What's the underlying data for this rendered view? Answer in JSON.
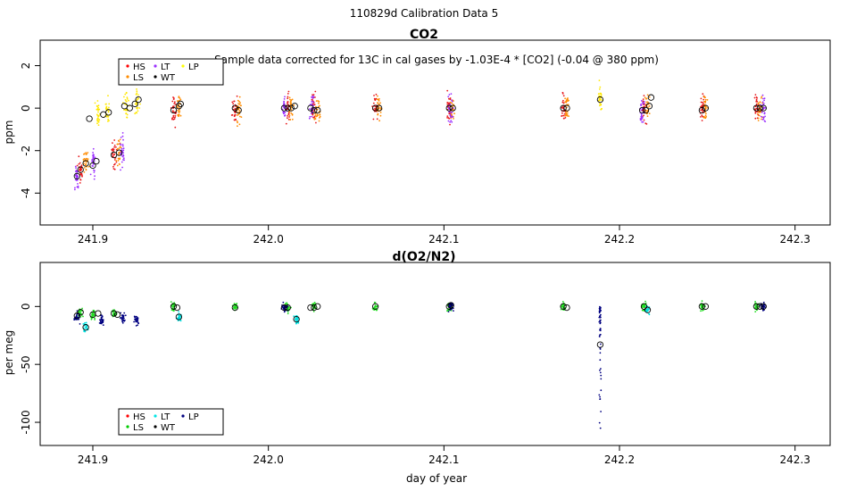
{
  "figure": {
    "suptitle": "110829d   Calibration Data 5",
    "xlabel": "day of year"
  },
  "chart_data": [
    {
      "type": "scatter",
      "title": "CO2",
      "ylabel": "ppm",
      "annotation": "Sample data corrected for 13C in cal gases by -1.03E-4 * [CO2] (-0.04 @ 380 ppm)",
      "xlim": [
        241.87,
        242.32
      ],
      "ylim": [
        -5.5,
        3.2
      ],
      "xticks": [
        241.9,
        242.0,
        242.1,
        242.2,
        242.3
      ],
      "xticklabels": [
        "241.9",
        "242.0",
        "242.1",
        "242.2",
        "242.3"
      ],
      "yticks": [
        -4,
        -2,
        0,
        2
      ],
      "yticklabels": [
        "-4",
        "-2",
        "0",
        "2"
      ],
      "legend": {
        "placement": "top-left",
        "entries": [
          {
            "name": "HS",
            "color": "#ff0000"
          },
          {
            "name": "LS",
            "color": "#ff8c00"
          },
          {
            "name": "LT",
            "color": "#9b30ff"
          },
          {
            "name": "WT",
            "color": "#000000"
          },
          {
            "name": "LP",
            "color": "#ffff00"
          }
        ]
      },
      "series": [
        {
          "name": "HS",
          "color": "#e8171a",
          "x": [
            241.893,
            241.912,
            241.946,
            241.981,
            242.011,
            242.026,
            242.061,
            242.103,
            242.168,
            242.214,
            242.247,
            242.278
          ],
          "y": [
            -3.0,
            -2.2,
            -0.1,
            0.0,
            0.0,
            0.0,
            0.0,
            0.0,
            0.0,
            -0.1,
            0.0,
            0.0
          ]
        },
        {
          "name": "LS",
          "color": "#ff8c00",
          "x": [
            241.896,
            241.915,
            241.949,
            241.983,
            242.013,
            242.028,
            242.063,
            242.105,
            242.17,
            242.216,
            242.249,
            242.28
          ],
          "y": [
            -2.6,
            -2.1,
            0.1,
            -0.1,
            0.0,
            -0.1,
            0.0,
            0.0,
            0.0,
            0.0,
            0.0,
            0.0
          ]
        },
        {
          "name": "LT",
          "color": "#9b30ff",
          "x": [
            241.891,
            241.9,
            241.917,
            242.009,
            242.025,
            242.104,
            242.213,
            242.282
          ],
          "y": [
            -3.2,
            -2.5,
            -2.1,
            0.0,
            0.0,
            0.0,
            -0.1,
            0.0
          ]
        },
        {
          "name": "LP",
          "color": "#ffe800",
          "x": [
            241.903,
            241.908,
            241.919,
            241.925,
            242.189
          ],
          "y": [
            -0.3,
            -0.2,
            0.1,
            0.3,
            0.4
          ]
        }
      ],
      "cluster_means": [
        [
          241.891,
          -3.2
        ],
        [
          241.893,
          -2.9
        ],
        [
          241.896,
          -2.6
        ],
        [
          241.898,
          -0.5
        ],
        [
          241.9,
          -2.7
        ],
        [
          241.902,
          -2.5
        ],
        [
          241.906,
          -0.3
        ],
        [
          241.909,
          -0.2
        ],
        [
          241.912,
          -2.2
        ],
        [
          241.915,
          -2.1
        ],
        [
          241.918,
          0.1
        ],
        [
          241.921,
          0.0
        ],
        [
          241.924,
          0.2
        ],
        [
          241.926,
          0.4
        ],
        [
          241.946,
          -0.1
        ],
        [
          241.949,
          0.1
        ],
        [
          241.95,
          0.2
        ],
        [
          241.981,
          0.0
        ],
        [
          241.983,
          -0.1
        ],
        [
          242.009,
          0.0
        ],
        [
          242.011,
          0.0
        ],
        [
          242.013,
          0.0
        ],
        [
          242.015,
          0.1
        ],
        [
          242.024,
          0.0
        ],
        [
          242.026,
          -0.1
        ],
        [
          242.028,
          -0.1
        ],
        [
          242.061,
          0.0
        ],
        [
          242.063,
          0.0
        ],
        [
          242.103,
          0.0
        ],
        [
          242.105,
          0.0
        ],
        [
          242.168,
          0.0
        ],
        [
          242.17,
          0.0
        ],
        [
          242.189,
          0.4
        ],
        [
          242.213,
          -0.1
        ],
        [
          242.215,
          -0.1
        ],
        [
          242.217,
          0.1
        ],
        [
          242.218,
          0.5
        ],
        [
          242.247,
          -0.1
        ],
        [
          242.249,
          0.0
        ],
        [
          242.278,
          0.0
        ],
        [
          242.28,
          0.0
        ],
        [
          242.282,
          0.0
        ]
      ]
    },
    {
      "type": "scatter",
      "title": "d(O2/N2)",
      "ylabel": "per meg",
      "xlim": [
        241.87,
        242.32
      ],
      "ylim": [
        -120,
        38
      ],
      "xticks": [
        241.9,
        242.0,
        242.1,
        242.2,
        242.3
      ],
      "xticklabels": [
        "241.9",
        "242.0",
        "242.1",
        "242.2",
        "242.3"
      ],
      "yticks": [
        -100,
        -50,
        0
      ],
      "yticklabels": [
        "-100",
        "-50",
        "0"
      ],
      "legend": {
        "placement": "bottom-left",
        "entries": [
          {
            "name": "HS",
            "color": "#ff0000"
          },
          {
            "name": "LS",
            "color": "#00cc00"
          },
          {
            "name": "LT",
            "color": "#00e5e5"
          },
          {
            "name": "WT",
            "color": "#000000"
          },
          {
            "name": "LP",
            "color": "#000080"
          }
        ]
      },
      "series": [
        {
          "name": "LS",
          "color": "#22dd22",
          "x": [
            241.893,
            241.9,
            241.912,
            241.946,
            241.981,
            242.011,
            242.026,
            242.061,
            242.103,
            242.168,
            242.214,
            242.247,
            242.278
          ],
          "y": [
            -5,
            -7,
            -6,
            0,
            0,
            -1,
            0,
            0,
            0,
            0,
            0,
            0,
            0
          ]
        },
        {
          "name": "LT",
          "color": "#00e0e0",
          "x": [
            241.896,
            241.949,
            242.016,
            242.216
          ],
          "y": [
            -18,
            -9,
            -11,
            -3
          ]
        },
        {
          "name": "LP",
          "color": "#000080",
          "x": [
            241.891,
            241.905,
            241.917,
            241.925,
            242.009,
            242.104,
            242.189,
            242.282
          ],
          "y": [
            -9,
            -12,
            -10,
            -12,
            -1,
            0,
            -33,
            0
          ]
        }
      ],
      "cluster_means": [
        [
          241.891,
          -8
        ],
        [
          241.893,
          -5
        ],
        [
          241.896,
          -18
        ],
        [
          241.9,
          -7
        ],
        [
          241.903,
          -6
        ],
        [
          241.912,
          -6
        ],
        [
          241.914,
          -7
        ],
        [
          241.946,
          0
        ],
        [
          241.948,
          -1
        ],
        [
          241.949,
          -9
        ],
        [
          241.981,
          -1
        ],
        [
          242.009,
          -1
        ],
        [
          242.011,
          -1
        ],
        [
          242.016,
          -11
        ],
        [
          242.024,
          -1
        ],
        [
          242.026,
          -1
        ],
        [
          242.028,
          0
        ],
        [
          242.061,
          0
        ],
        [
          242.103,
          0
        ],
        [
          242.104,
          1
        ],
        [
          242.168,
          0
        ],
        [
          242.17,
          -1
        ],
        [
          242.189,
          -33
        ],
        [
          242.214,
          0
        ],
        [
          242.216,
          -3
        ],
        [
          242.247,
          0
        ],
        [
          242.249,
          0
        ],
        [
          242.278,
          0
        ],
        [
          242.28,
          0
        ],
        [
          242.282,
          0
        ]
      ]
    }
  ]
}
